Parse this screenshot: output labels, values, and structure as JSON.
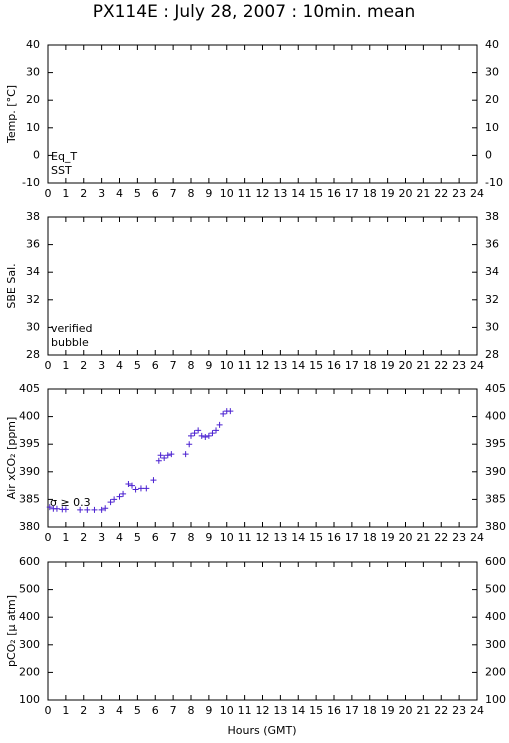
{
  "chart_data": [
    {
      "type": "scatter",
      "title": "PX114E : July 28, 2007 : 10min. mean",
      "y_label": "Temp. [°C]",
      "xlim": [
        0,
        24
      ],
      "xticks": [
        0,
        1,
        2,
        3,
        4,
        5,
        6,
        7,
        8,
        9,
        10,
        11,
        12,
        13,
        14,
        15,
        16,
        17,
        18,
        19,
        20,
        21,
        22,
        23,
        24
      ],
      "ylim": [
        -10,
        40
      ],
      "yticks": [
        -10,
        0,
        10,
        20,
        30,
        40
      ],
      "series": [
        {
          "name": "Eq_T",
          "color": "#d00000",
          "x": [],
          "values": []
        },
        {
          "name": "SST",
          "color": "#0000c0",
          "x": [],
          "values": []
        }
      ]
    },
    {
      "type": "scatter",
      "y_label": "SBE Sal.",
      "xlim": [
        0,
        24
      ],
      "xticks": [
        0,
        1,
        2,
        3,
        4,
        5,
        6,
        7,
        8,
        9,
        10,
        11,
        12,
        13,
        14,
        15,
        16,
        17,
        18,
        19,
        20,
        21,
        22,
        23,
        24
      ],
      "ylim": [
        28,
        38
      ],
      "yticks": [
        28,
        30,
        32,
        34,
        36,
        38
      ],
      "series": [
        {
          "name": "verified",
          "color": "#0000c0",
          "x": [],
          "values": []
        },
        {
          "name": "bubble",
          "color": "#d000d0",
          "x": [],
          "values": []
        }
      ]
    },
    {
      "type": "scatter",
      "y_label": "Air xCO₂ [ppm]",
      "annotation": "σ ≥ 0.3",
      "annotation_color": "#d000d0",
      "xlim": [
        0,
        24
      ],
      "xticks": [
        0,
        1,
        2,
        3,
        4,
        5,
        6,
        7,
        8,
        9,
        10,
        11,
        12,
        13,
        14,
        15,
        16,
        17,
        18,
        19,
        20,
        21,
        22,
        23,
        24
      ],
      "ylim": [
        380,
        405
      ],
      "yticks": [
        380,
        385,
        390,
        395,
        400,
        405
      ],
      "series": [
        {
          "color": "#4a20d0",
          "x": [
            0.1,
            0.3,
            0.5,
            0.8,
            1.0,
            1.8,
            2.2,
            2.6,
            3.0,
            3.2,
            3.5,
            3.7,
            4.0,
            4.2,
            4.5,
            4.7,
            4.9,
            5.2,
            5.5,
            5.9,
            6.2,
            6.3,
            6.5,
            6.7,
            6.9,
            7.7,
            7.9,
            8.0,
            8.2,
            8.4,
            8.6,
            8.8,
            9.0,
            9.2,
            9.4,
            9.6,
            9.8,
            10.0,
            10.2
          ],
          "values": [
            383.6,
            383.3,
            383.3,
            383.2,
            383.2,
            383.1,
            383.1,
            383.1,
            383.1,
            383.4,
            384.5,
            385,
            385.5,
            386,
            387.8,
            387.5,
            386.8,
            387,
            387,
            388.5,
            392,
            393,
            392.5,
            393,
            393.2,
            393.2,
            395,
            396.5,
            397,
            397.5,
            396.5,
            396.3,
            396.5,
            397,
            397.5,
            398.5,
            400.5,
            401,
            401
          ]
        }
      ]
    },
    {
      "type": "scatter",
      "y_label": "pCO₂ [μ atm]",
      "x_label": "Hours (GMT)",
      "xlim": [
        0,
        24
      ],
      "xticks": [
        0,
        1,
        2,
        3,
        4,
        5,
        6,
        7,
        8,
        9,
        10,
        11,
        12,
        13,
        14,
        15,
        16,
        17,
        18,
        19,
        20,
        21,
        22,
        23,
        24
      ],
      "ylim": [
        100,
        600
      ],
      "yticks": [
        100,
        200,
        300,
        400,
        500,
        600
      ],
      "series": []
    }
  ]
}
